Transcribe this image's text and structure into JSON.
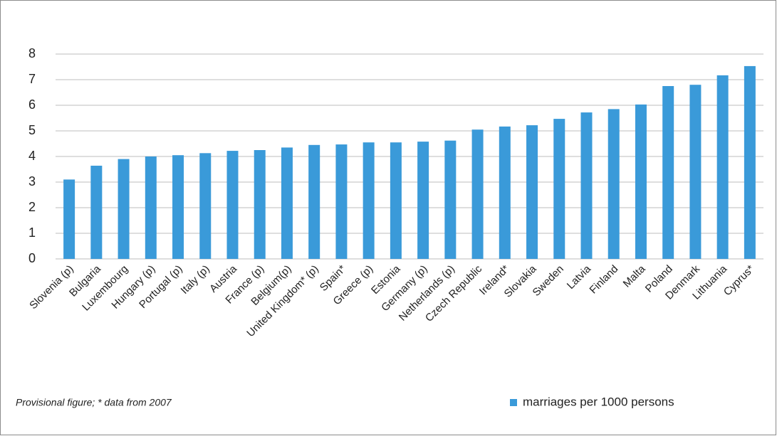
{
  "chart_data": {
    "type": "bar",
    "note": "Provisional figure; * data from 2007",
    "categories": [
      "Slovenia (p)",
      "Bulgaria",
      "Luxembourg",
      "Hungary (p)",
      "Portugal (p)",
      "Italy (p)",
      "Austria",
      "France (p)",
      "Belgium(p)",
      "United Kingdom* (p)",
      "Spain*",
      "Greece (p)",
      "Estonia",
      "Germany (p)",
      "Netherlands (p)",
      "Czech Republic",
      "Ireland*",
      "Slovakia",
      "Sweden",
      "Latvia",
      "Finland",
      "Malta",
      "Poland",
      "Denmark",
      "Lithuania",
      "Cyprus*"
    ],
    "series": [
      {
        "name": "marriages per 1000 persons",
        "color": "#3a9ad9",
        "values": [
          3.1,
          3.64,
          3.9,
          4.0,
          4.05,
          4.13,
          4.22,
          4.25,
          4.35,
          4.45,
          4.47,
          4.55,
          4.55,
          4.58,
          4.62,
          5.05,
          5.17,
          5.22,
          5.47,
          5.72,
          5.85,
          6.03,
          6.75,
          6.8,
          7.17,
          7.53
        ]
      }
    ],
    "ylim": [
      0,
      8
    ],
    "yticks": [
      0,
      1,
      2,
      3,
      4,
      5,
      6,
      7,
      8
    ],
    "grid": true,
    "legend": "bottom-right"
  }
}
